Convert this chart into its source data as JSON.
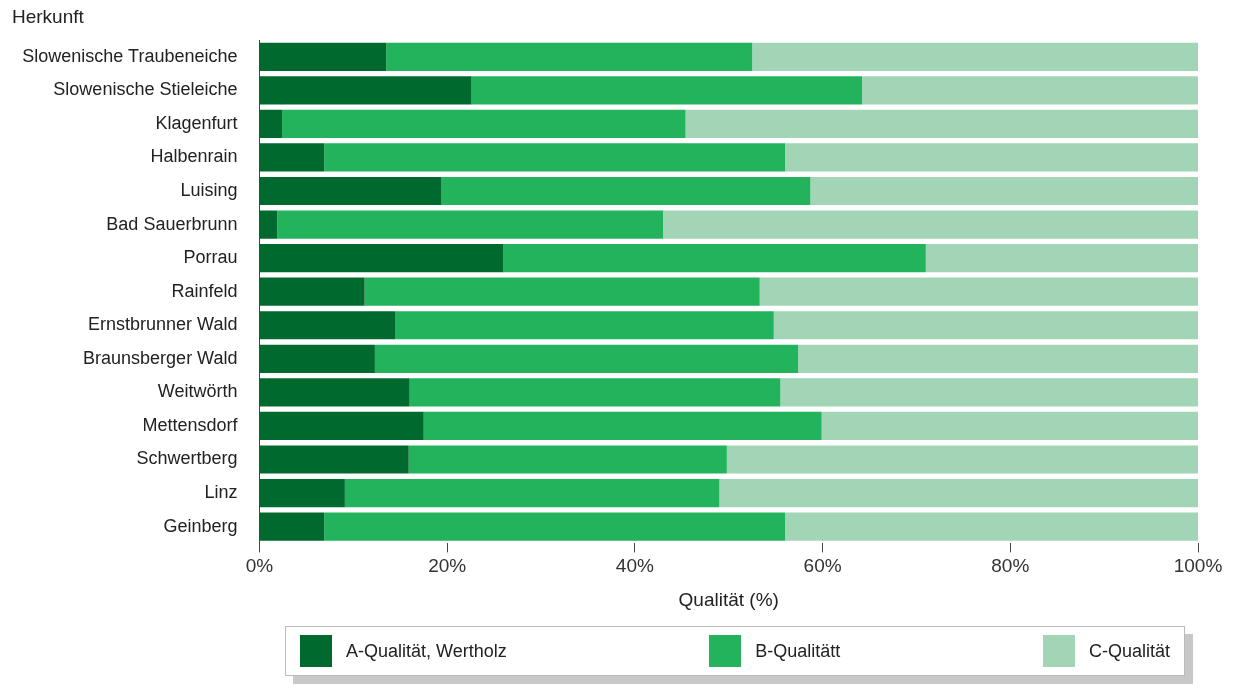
{
  "chart_data": {
    "type": "bar",
    "orientation": "horizontal",
    "stacked": true,
    "ylabel": "Herkunft",
    "xlabel": "Qualität (%)",
    "categories": [
      "Slowenische Traubeneiche",
      "Slowenische Stieleiche",
      "Klagenfurt",
      "Halbenrain",
      "Luising",
      "Bad Sauerbrunn",
      "Porrau",
      "Rainfeld",
      "Ernstbrunner Wald",
      "Braunsberger Wald",
      "Weitwörth",
      "Mettensdorf",
      "Schwertberg",
      "Linz",
      "Geinberg"
    ],
    "series": [
      {
        "name": "A-Qualität, Wertholz",
        "color": "#006a2e",
        "values": [
          13.5,
          22.6,
          2.4,
          6.9,
          19.4,
          1.9,
          26,
          11.2,
          14.5,
          12.3,
          16,
          17.5,
          15.9,
          9.1,
          6.9
        ]
      },
      {
        "name": "B-Qualitätt",
        "color": "#22b35c",
        "values": [
          39,
          41.6,
          43,
          49.1,
          39.3,
          41.1,
          45,
          42.1,
          40.3,
          45.1,
          39.5,
          42.4,
          33.9,
          39.9,
          49.1
        ]
      },
      {
        "name": "C-Qualität",
        "color": "#a1d5b5",
        "values": [
          47.5,
          35.8,
          54.6,
          44,
          41.3,
          57,
          29,
          46.7,
          45.2,
          42.6,
          44.5,
          40.1,
          50.2,
          51,
          44
        ]
      }
    ],
    "xlim": [
      0,
      100
    ],
    "xticks": [
      {
        "value": 0,
        "label": "0%"
      },
      {
        "value": 20,
        "label": "20%"
      },
      {
        "value": 40,
        "label": "40%"
      },
      {
        "value": 60,
        "label": "60%"
      },
      {
        "value": 80,
        "label": "80%"
      },
      {
        "value": 100,
        "label": "100%"
      }
    ],
    "grid": false,
    "legend": "bottom"
  }
}
